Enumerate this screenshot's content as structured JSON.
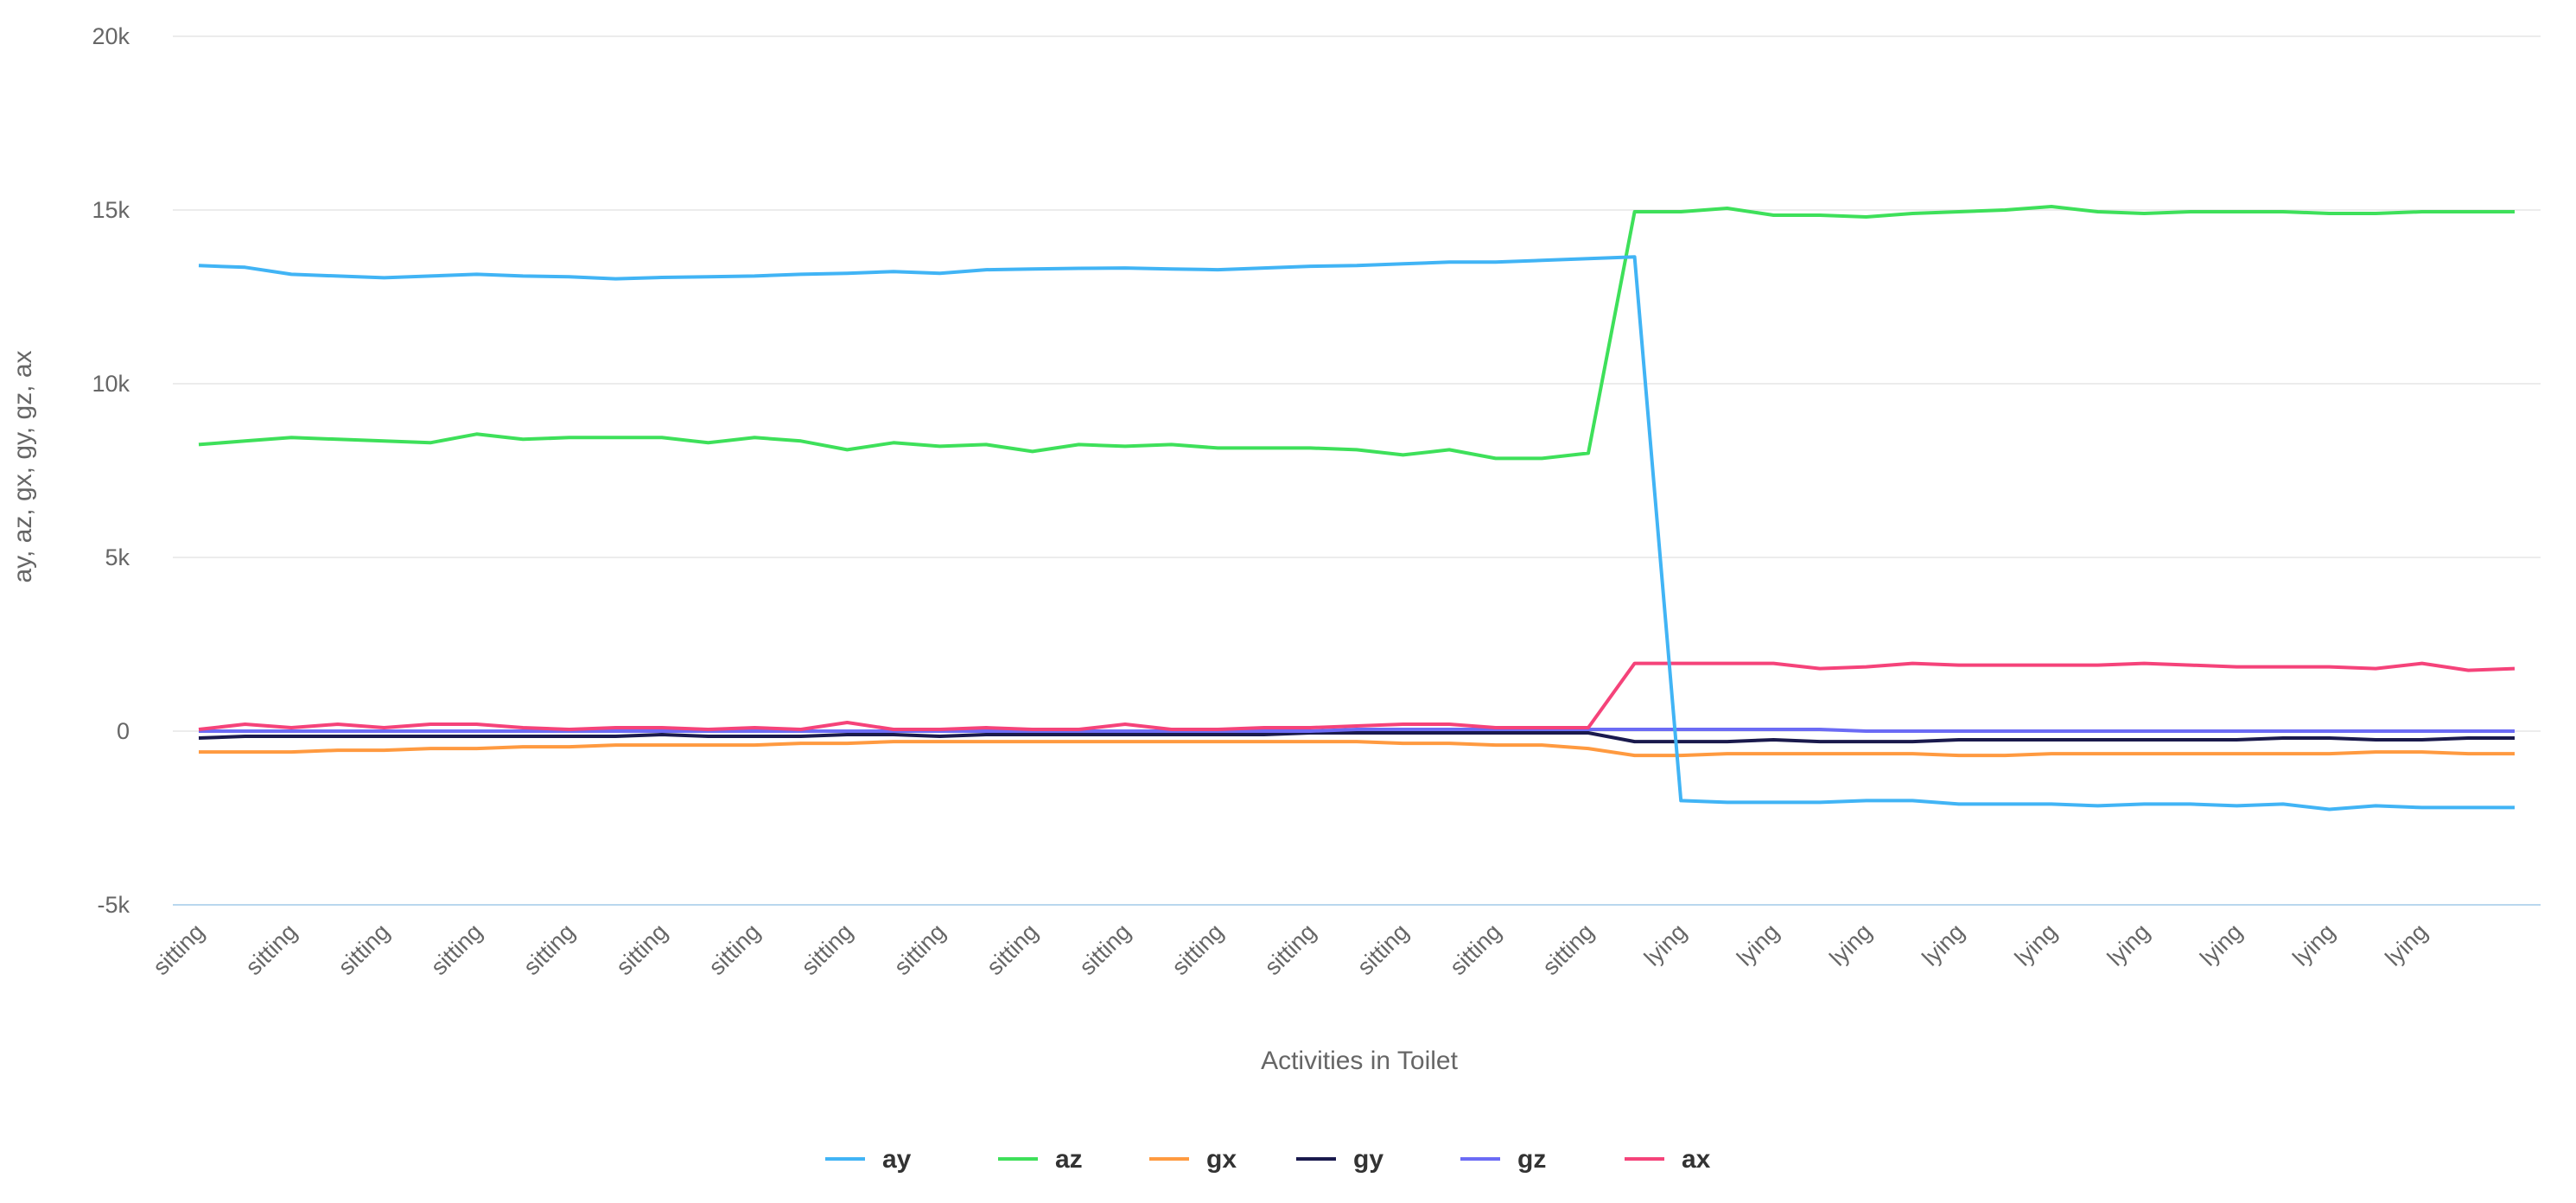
{
  "chart_data": {
    "type": "line",
    "xlabel": "Activities in Toilet",
    "ylabel": "ay, az, gx, gy, gz, ax",
    "ylim": [
      -5000,
      20000
    ],
    "y_ticks": [
      -5000,
      0,
      5000,
      10000,
      15000,
      20000
    ],
    "y_tick_labels": [
      "-5k",
      "0",
      "5k",
      "10k",
      "15k",
      "20k"
    ],
    "grid": true,
    "legend_position": "bottom",
    "x_tick_labels": [
      "sitting",
      "sitting",
      "sitting",
      "sitting",
      "sitting",
      "sitting",
      "sitting",
      "sitting",
      "sitting",
      "sitting",
      "sitting",
      "sitting",
      "sitting",
      "sitting",
      "sitting",
      "sitting",
      "lying",
      "lying",
      "lying",
      "lying",
      "lying",
      "lying",
      "lying",
      "lying",
      "lying"
    ],
    "x_tick_index": [
      0,
      2,
      4,
      6,
      8,
      10,
      12,
      14,
      16,
      18,
      20,
      22,
      24,
      26,
      28,
      30,
      32,
      34,
      36,
      38,
      40,
      42,
      44,
      46,
      48
    ],
    "series": [
      {
        "name": "ay",
        "color": "#41b4f5",
        "values": [
          13400,
          13350,
          13150,
          13100,
          13050,
          13100,
          13150,
          13100,
          13080,
          13020,
          13060,
          13080,
          13100,
          13150,
          13180,
          13230,
          13180,
          13280,
          13300,
          13320,
          13330,
          13300,
          13280,
          13330,
          13380,
          13400,
          13450,
          13500,
          13500,
          13550,
          13600,
          13650,
          -2000,
          -2050,
          -2050,
          -2050,
          -2000,
          -2000,
          -2100,
          -2100,
          -2100,
          -2150,
          -2100,
          -2100,
          -2150,
          -2100,
          -2250,
          -2150,
          -2200,
          -2200,
          -2200
        ]
      },
      {
        "name": "az",
        "color": "#3ee05a",
        "values": [
          8250,
          8350,
          8450,
          8400,
          8350,
          8300,
          8550,
          8400,
          8450,
          8450,
          8450,
          8300,
          8450,
          8350,
          8100,
          8300,
          8200,
          8250,
          8050,
          8250,
          8200,
          8250,
          8150,
          8150,
          8150,
          8100,
          7950,
          8100,
          7850,
          7850,
          8000,
          14950,
          14950,
          15050,
          14850,
          14850,
          14800,
          14900,
          14950,
          15000,
          15100,
          14950,
          14900,
          14950,
          14950,
          14950,
          14900,
          14900,
          14950,
          14950,
          14950
        ]
      },
      {
        "name": "gx",
        "color": "#ff9a40",
        "values": [
          -600,
          -600,
          -600,
          -550,
          -550,
          -500,
          -500,
          -450,
          -450,
          -400,
          -400,
          -400,
          -400,
          -350,
          -350,
          -300,
          -300,
          -300,
          -300,
          -300,
          -300,
          -300,
          -300,
          -300,
          -300,
          -300,
          -350,
          -350,
          -400,
          -400,
          -500,
          -700,
          -700,
          -650,
          -650,
          -650,
          -650,
          -650,
          -700,
          -700,
          -650,
          -650,
          -650,
          -650,
          -650,
          -650,
          -650,
          -600,
          -600,
          -650,
          -650
        ]
      },
      {
        "name": "gy",
        "color": "#1a1a4d",
        "values": [
          -200,
          -150,
          -150,
          -150,
          -150,
          -150,
          -150,
          -150,
          -150,
          -150,
          -100,
          -150,
          -150,
          -150,
          -100,
          -100,
          -150,
          -100,
          -100,
          -100,
          -100,
          -100,
          -100,
          -100,
          -50,
          -50,
          -50,
          -50,
          -50,
          -50,
          -50,
          -300,
          -300,
          -300,
          -250,
          -300,
          -300,
          -300,
          -250,
          -250,
          -250,
          -250,
          -250,
          -250,
          -250,
          -200,
          -200,
          -250,
          -250,
          -200,
          -200
        ]
      },
      {
        "name": "gz",
        "color": "#6b6bf5",
        "values": [
          0,
          0,
          0,
          0,
          0,
          0,
          0,
          0,
          0,
          0,
          0,
          0,
          0,
          0,
          0,
          0,
          0,
          0,
          0,
          0,
          0,
          0,
          0,
          0,
          0,
          50,
          50,
          50,
          50,
          50,
          50,
          50,
          50,
          50,
          50,
          50,
          0,
          0,
          0,
          0,
          0,
          0,
          0,
          0,
          0,
          0,
          0,
          0,
          0,
          0,
          0
        ]
      },
      {
        "name": "ax",
        "color": "#f5437a",
        "values": [
          50,
          200,
          100,
          200,
          100,
          200,
          200,
          100,
          50,
          100,
          100,
          50,
          100,
          50,
          250,
          50,
          50,
          100,
          50,
          50,
          200,
          50,
          50,
          100,
          100,
          150,
          200,
          200,
          100,
          100,
          100,
          1950,
          1950,
          1950,
          1950,
          1800,
          1850,
          1950,
          1900,
          1900,
          1900,
          1900,
          1950,
          1900,
          1850,
          1850,
          1850,
          1800,
          1950,
          1750,
          1800
        ]
      }
    ]
  }
}
